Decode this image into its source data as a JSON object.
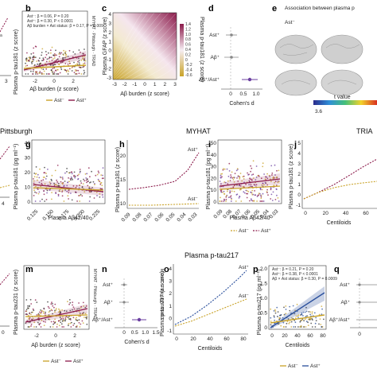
{
  "panels": {
    "b": {
      "letter": "b",
      "xlabel": "Aβ burden (z score)",
      "ylabel": "Plasma p-tau181 (z score)",
      "xticks": [
        "-2",
        "0",
        "2"
      ],
      "side": "MYHAT · Pittsburgh · TRIAD",
      "stats": [
        "Ast⁻: β = 0.06, P = 0.20",
        "Ast⁺: β = 0.30, P < 0.0001",
        "Aβ burden × Ast status: β = 0.17, P = 0.009"
      ],
      "legend": [
        "Ast⁻",
        "Ast⁺"
      ]
    },
    "c": {
      "letter": "c",
      "xlabel": "Aβ burden (z score)",
      "ylabel": "Plasma GFAP (z score)",
      "zlabel": "Plasma p-tau181 (z score)",
      "xticks": [
        "-3",
        "-2",
        "-1",
        "0",
        "1",
        "2",
        "3"
      ],
      "yticks": [
        "-3",
        "-2",
        "-1",
        "0",
        "1",
        "2",
        "3",
        "4"
      ],
      "zticks": [
        "1.4",
        "1.2",
        "1.0",
        "0.8",
        "0.6",
        "0.4",
        "0.2",
        "0",
        "-0.2",
        "-0.4",
        "-0.6"
      ]
    },
    "d": {
      "letter": "d",
      "xlabel": "Cohen's d",
      "rows": [
        "Ast⁺",
        "Aβ⁺",
        "Aβ⁺/Ast⁺"
      ],
      "xticks": [
        "0",
        "0.5",
        "1.0"
      ]
    },
    "e": {
      "letter": "e",
      "title": "Association between plasma p",
      "rowlabel": "Ast⁻",
      "cbar_label": "t value",
      "cbar_min": "3.6"
    },
    "g": {
      "letter": "g",
      "section": "Pittsburgh",
      "xlabel": "Plasma Aβ42/40",
      "ylabel": "Plasma p-tau181 (pg ml⁻¹)",
      "yticks": [
        "0",
        "10",
        "20",
        "30",
        "40"
      ],
      "xticks": [
        "0.125",
        "0.150",
        "0.175",
        "0.200",
        "0.225"
      ]
    },
    "h": {
      "letter": "h",
      "section": "MYHAT",
      "ylabel": "Plasma p-tau181 (z score)",
      "yticks": [
        "10",
        "15",
        "20"
      ],
      "xticks": [
        "0.09",
        "0.08",
        "0.07",
        "0.06",
        "0.05",
        "0.04",
        "0.03"
      ],
      "tag_top": "Ast⁺",
      "tag_bottom": "Ast⁻"
    },
    "i": {
      "letter": "i",
      "xlabel": "Plasma Aβ42/40",
      "ylabel": "Plasma p-tau181 (pg ml⁻¹)",
      "yticks": [
        "0",
        "10",
        "20",
        "30",
        "40",
        "50"
      ],
      "xticks": [
        "0.09",
        "0.08",
        "0.07",
        "0.06",
        "0.05",
        "0.04",
        "0.03"
      ]
    },
    "j": {
      "letter": "j",
      "section": "TRIA",
      "xlabel": "Centiloids",
      "ylabel": "Plasma p-tau181 (z score)",
      "yticks": [
        "-1",
        "0",
        "1",
        "2",
        "3",
        "4",
        "5"
      ],
      "xticks": [
        "0",
        "20",
        "40",
        "60"
      ]
    },
    "m": {
      "letter": "m",
      "xlabel": "Aβ burden (z score)",
      "ylabel": "Plasma p-tau231 (z score)",
      "xticks": [
        "-2",
        "0",
        "2"
      ],
      "side": "MYHAT · Pittsburgh · TRIAD",
      "legend": [
        "Ast⁻",
        "Ast⁺"
      ]
    },
    "n": {
      "letter": "n",
      "xlabel": "Cohen's d",
      "rows": [
        "Ast⁺",
        "Aβ⁺",
        "Aβ⁺/Ast⁺"
      ],
      "xticks": [
        "0",
        "0.5",
        "1.0",
        "1.5"
      ],
      "side": "MYHAT · Pittsburgh · TRIAD"
    },
    "o": {
      "letter": "o",
      "section": "Plasma p-tau217",
      "xlabel": "Centiloids",
      "ylabel": "Plasma p-tau217 (z score)",
      "yticks": [
        "-1",
        "0",
        "1",
        "2",
        "3",
        "4"
      ],
      "xticks": [
        "0",
        "20",
        "40",
        "60",
        "80"
      ],
      "tag_top": "Ast⁺",
      "tag_bottom": "Ast⁻"
    },
    "p": {
      "letter": "p",
      "xlabel": "Centiloids",
      "ylabel": "Plasma p-tau217 (pg ml⁻¹)",
      "yticks": [
        "0",
        "0.5",
        "1.0",
        "1.5",
        "2.0"
      ],
      "xticks": [
        "0",
        "20",
        "40",
        "60",
        "80"
      ],
      "stats": [
        "Ast⁻: β = 0.21, P = 0.20",
        "Ast⁺: β = 0.38, P < 0.0001",
        "Aβ × Ast status: β = 0.30, P = 0.0009"
      ]
    },
    "q": {
      "letter": "q",
      "rows": [
        "Ast⁺",
        "Aβ⁺",
        "Aβ⁺/Ast⁺"
      ],
      "xticks": [
        "0"
      ]
    }
  },
  "legend_bottom": [
    "Ast⁻",
    "Ast⁺"
  ],
  "colors": {
    "ast_neg": "#c9a227",
    "ast_pos": "#8b1a4a",
    "blue": "#2a4f9c",
    "purple": "#6b3fa0"
  }
}
